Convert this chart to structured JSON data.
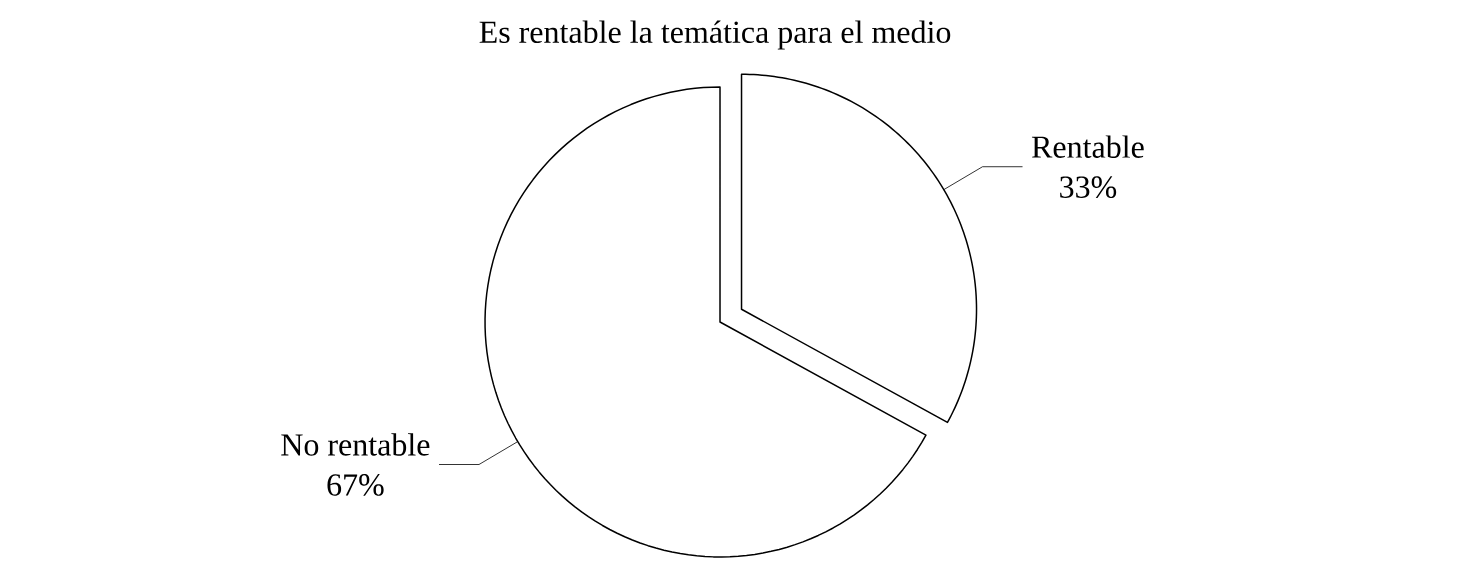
{
  "chart_data": {
    "type": "pie",
    "title": "Es rentable la temática para el medio",
    "categories": [
      "Rentable",
      "No rentable"
    ],
    "values": [
      33,
      67
    ],
    "colors": [
      "#ffffff",
      "#ffffff"
    ],
    "value_labels": [
      "33%",
      "67%"
    ]
  }
}
